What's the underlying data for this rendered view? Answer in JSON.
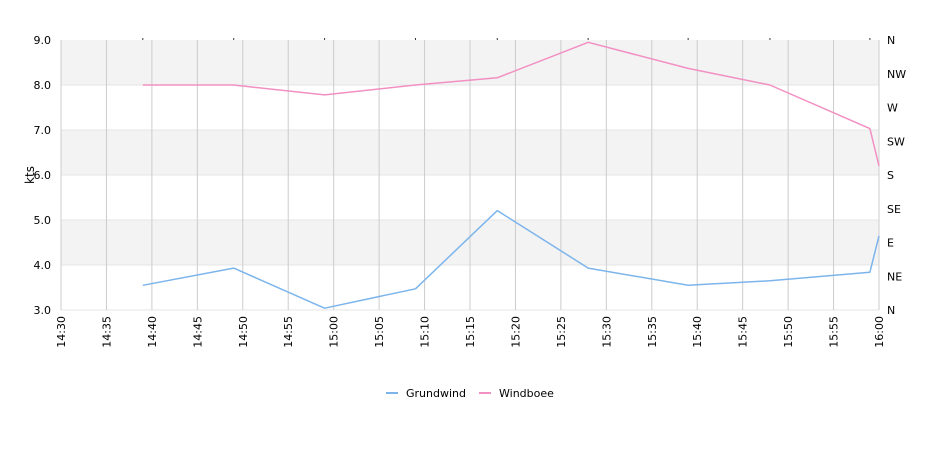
{
  "chart_data": {
    "type": "line",
    "ylabel": "kts",
    "ylim": [
      3.0,
      9.0
    ],
    "yticks": [
      "3.0",
      "4.0",
      "5.0",
      "6.0",
      "7.0",
      "8.0",
      "9.0"
    ],
    "y2ticks": [
      "N",
      "NE",
      "E",
      "SE",
      "S",
      "SW",
      "W",
      "NW",
      "N"
    ],
    "xticks": [
      "14:30",
      "14:35",
      "14:40",
      "14:45",
      "14:50",
      "14:55",
      "15:00",
      "15:05",
      "15:10",
      "15:15",
      "15:20",
      "15:25",
      "15:30",
      "15:35",
      "15:40",
      "15:45",
      "15:50",
      "15:55",
      "16:00"
    ],
    "legend_position": "bottom-center",
    "grid": true,
    "series": [
      {
        "name": "Grundwind",
        "color": "#7cb5ec",
        "points": [
          [
            "14:39",
            3.55
          ],
          [
            "14:49",
            3.93
          ],
          [
            "14:59",
            3.04
          ],
          [
            "15:09",
            3.47
          ],
          [
            "15:18",
            5.21
          ],
          [
            "15:28",
            3.93
          ],
          [
            "15:39",
            3.55
          ],
          [
            "15:48",
            3.65
          ],
          [
            "15:59",
            3.84
          ],
          [
            "16:00",
            4.65
          ]
        ]
      },
      {
        "name": "Windboee",
        "color": "#f28fc3",
        "points": [
          [
            "14:39",
            8.0
          ],
          [
            "14:49",
            8.0
          ],
          [
            "14:59",
            7.78
          ],
          [
            "15:09",
            8.0
          ],
          [
            "15:18",
            8.16
          ],
          [
            "15:28",
            8.95
          ],
          [
            "15:39",
            8.37
          ],
          [
            "15:48",
            8.0
          ],
          [
            "15:59",
            7.03
          ],
          [
            "16:00",
            6.2
          ]
        ]
      }
    ]
  }
}
